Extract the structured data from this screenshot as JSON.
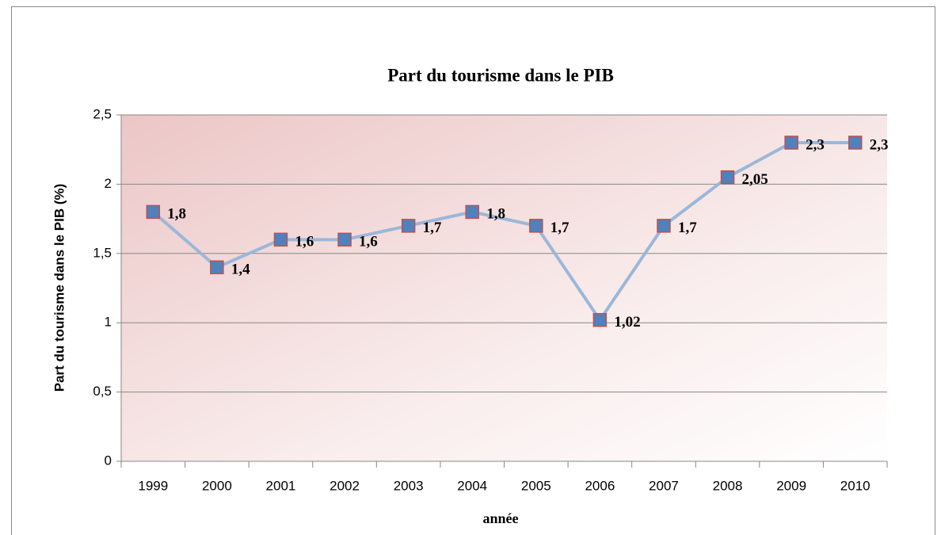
{
  "chart_data": {
    "type": "line",
    "title": "Part du tourisme dans le PIB",
    "x_label": "année",
    "y_label": "Part du tourisme dans le PIB (%)",
    "categories": [
      "1999",
      "2000",
      "2001",
      "2002",
      "2003",
      "2004",
      "2005",
      "2006",
      "2007",
      "2008",
      "2009",
      "2010"
    ],
    "series": [
      {
        "name": "Part du tourisme dans le PIB",
        "color": "#9bb7d9",
        "marker_color": "#4f81bd",
        "marker_edge": "#c0504d",
        "values": [
          1.8,
          1.4,
          1.6,
          1.6,
          1.7,
          1.8,
          1.7,
          1.02,
          1.7,
          2.05,
          2.3,
          2.3
        ],
        "value_labels": [
          "1,8",
          "1,4",
          "1,6",
          "1,6",
          "1,7",
          "1,8",
          "1,7",
          "1,02",
          "1,7",
          "2,05",
          "2,3",
          "2,3"
        ]
      }
    ],
    "ylim": [
      0,
      2.5
    ],
    "yticks": [
      0,
      {
        "value": 0.5,
        "label": "0,5"
      },
      1,
      {
        "value": 1.5,
        "label": "1,5"
      },
      2,
      {
        "value": 2.5,
        "label": "2,5"
      }
    ],
    "grid": true
  }
}
